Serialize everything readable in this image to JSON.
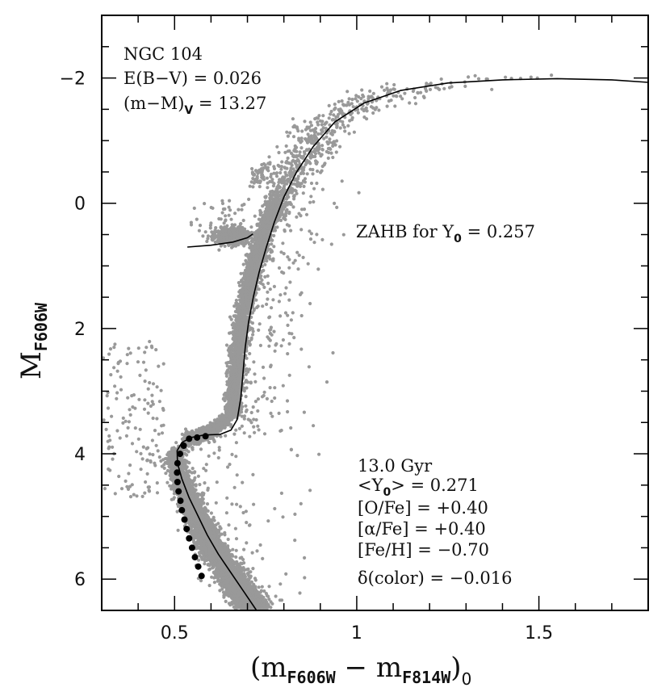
{
  "chart_data": {
    "type": "scatter",
    "title": "",
    "xlabel": "(m_F606W − m_F814W)_0",
    "ylabel": "M_F606W",
    "xlim": [
      0.3,
      1.8
    ],
    "ylim": [
      6.5,
      -3.0
    ],
    "y_inverted": true,
    "grid": false,
    "x_major_ticks": [
      0.5,
      1.0,
      1.5
    ],
    "x_tick_labels": [
      "0.5",
      "1",
      "1.5"
    ],
    "x_minor_step": 0.1,
    "y_major_ticks": [
      -2,
      0,
      2,
      4,
      6
    ],
    "y_tick_labels": [
      "−2",
      "0",
      "2",
      "4",
      "6"
    ],
    "y_minor_step": 0.5,
    "annotations": {
      "top_left": [
        "NGC 104",
        "E(B−V) = 0.026",
        "(m−M)_V = 13.27"
      ],
      "zahb_label": "ZAHB for Y_0 = 0.257",
      "bottom_right": [
        "13.0 Gyr",
        "<Y_0> = 0.271",
        "[O/Fe] = +0.40",
        "[α/Fe] = +0.40",
        "[Fe/H] = −0.70",
        "δ(color) = −0.016"
      ]
    },
    "series": [
      {
        "name": "isochrone",
        "kind": "line",
        "color": "#000000",
        "points": [
          [
            0.725,
            6.5
          ],
          [
            0.69,
            6.2
          ],
          [
            0.655,
            5.9
          ],
          [
            0.62,
            5.6
          ],
          [
            0.59,
            5.3
          ],
          [
            0.565,
            5.0
          ],
          [
            0.54,
            4.7
          ],
          [
            0.52,
            4.4
          ],
          [
            0.508,
            4.15
          ],
          [
            0.507,
            3.95
          ],
          [
            0.52,
            3.82
          ],
          [
            0.545,
            3.74
          ],
          [
            0.58,
            3.7
          ],
          [
            0.625,
            3.69
          ],
          [
            0.655,
            3.62
          ],
          [
            0.672,
            3.45
          ],
          [
            0.682,
            3.1
          ],
          [
            0.688,
            2.7
          ],
          [
            0.694,
            2.3
          ],
          [
            0.703,
            1.9
          ],
          [
            0.716,
            1.5
          ],
          [
            0.732,
            1.1
          ],
          [
            0.752,
            0.7
          ],
          [
            0.774,
            0.3
          ],
          [
            0.8,
            -0.1
          ],
          [
            0.835,
            -0.5
          ],
          [
            0.88,
            -0.9
          ],
          [
            0.94,
            -1.3
          ],
          [
            1.02,
            -1.6
          ],
          [
            1.12,
            -1.8
          ],
          [
            1.25,
            -1.92
          ],
          [
            1.4,
            -1.97
          ],
          [
            1.55,
            -1.99
          ],
          [
            1.7,
            -1.97
          ],
          [
            1.8,
            -1.93
          ]
        ]
      },
      {
        "name": "ZAHB",
        "kind": "line",
        "color": "#000000",
        "points": [
          [
            0.535,
            0.7
          ],
          [
            0.6,
            0.67
          ],
          [
            0.66,
            0.62
          ],
          [
            0.7,
            0.55
          ],
          [
            0.715,
            0.49
          ]
        ]
      },
      {
        "name": "fiducial points",
        "kind": "markers",
        "color": "#000000",
        "points": [
          [
            0.585,
            3.72
          ],
          [
            0.562,
            3.74
          ],
          [
            0.54,
            3.76
          ],
          [
            0.525,
            3.87
          ],
          [
            0.515,
            4.0
          ],
          [
            0.508,
            4.15
          ],
          [
            0.507,
            4.3
          ],
          [
            0.508,
            4.45
          ],
          [
            0.511,
            4.6
          ],
          [
            0.516,
            4.75
          ],
          [
            0.52,
            4.9
          ],
          [
            0.527,
            5.05
          ],
          [
            0.533,
            5.2
          ],
          [
            0.54,
            5.35
          ],
          [
            0.548,
            5.5
          ],
          [
            0.556,
            5.65
          ],
          [
            0.565,
            5.8
          ],
          [
            0.574,
            5.95
          ]
        ]
      },
      {
        "name": "observed stars (NGC 104)",
        "kind": "scatter",
        "color": "#999999",
        "description": "dense main sequence, subgiant and red giant branch following the isochrone with a red-clump HB near (0.65, 0.5)",
        "red_clump_center": [
          0.655,
          0.5
        ],
        "field_stars_region": {
          "x": [
            0.3,
            0.45
          ],
          "y": [
            2.2,
            4.6
          ]
        }
      }
    ],
    "colors": {
      "points": "#999999",
      "line": "#000000",
      "axes": "#000000"
    }
  }
}
